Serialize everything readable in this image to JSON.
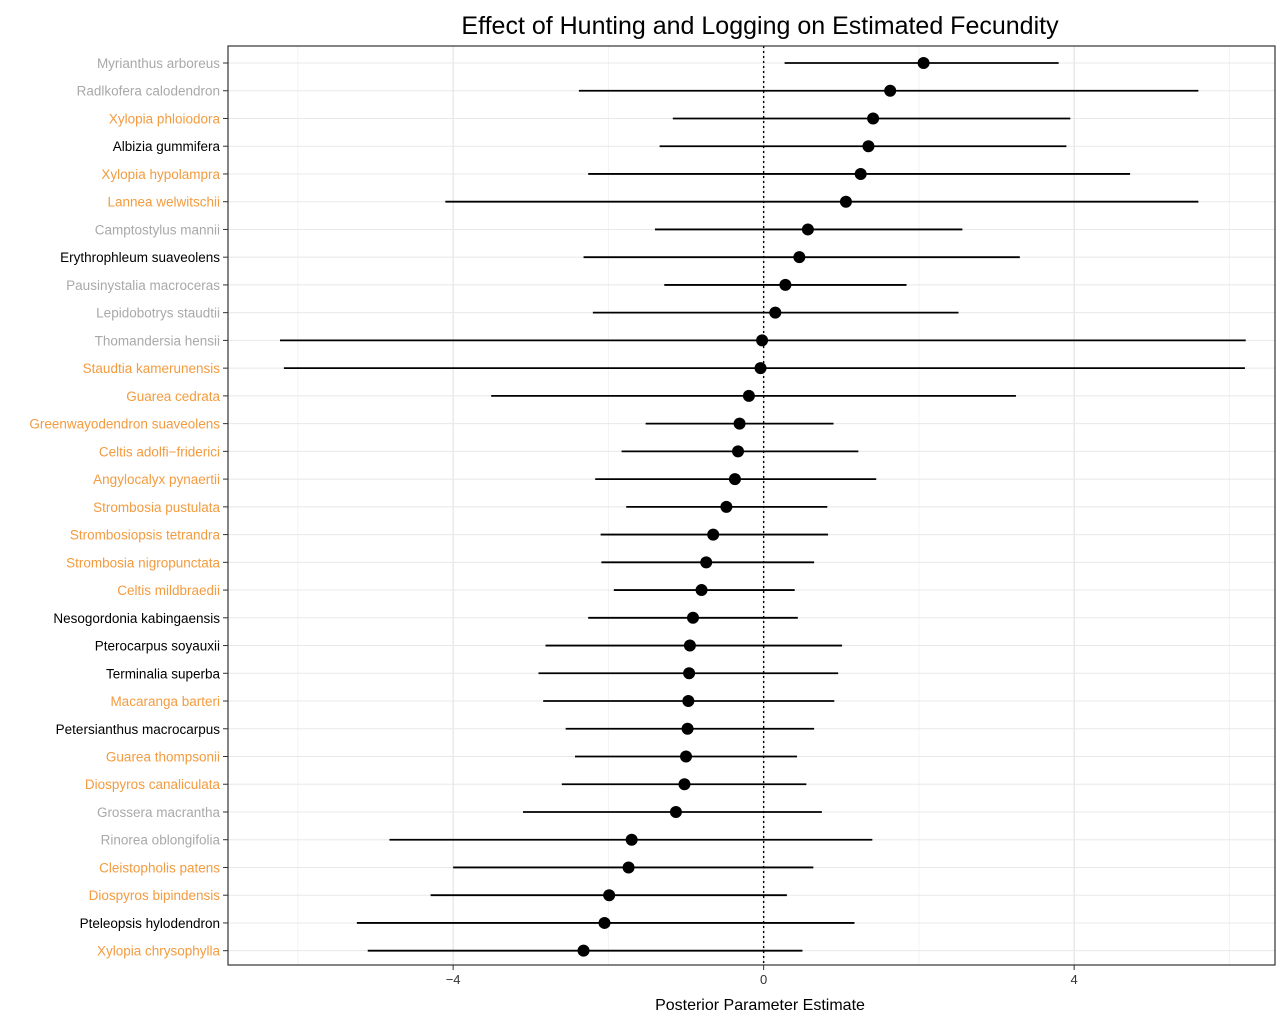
{
  "chart_data": {
    "type": "forest",
    "title": "Effect of Hunting and Logging on Estimated Fecundity",
    "xlabel": "Posterior Parameter Estimate",
    "ylabel": "",
    "xlim": [
      -6.9,
      6.6
    ],
    "x_ticks": [
      -4,
      0,
      4
    ],
    "x_tick_labels": [
      "−4",
      "0",
      "4"
    ],
    "reference_line": 0,
    "grid": true,
    "colors": {
      "black": "#000000",
      "gray": "#a9a9a9",
      "orange": "#f39b3f",
      "point": "#000000",
      "line": "#000000"
    },
    "species": [
      {
        "name": "Myrianthus arboreus",
        "color": "gray",
        "estimate": 2.06,
        "lower": 0.27,
        "upper": 3.8
      },
      {
        "name": "Radlkofera calodendron",
        "color": "gray",
        "estimate": 1.63,
        "lower": -2.38,
        "upper": 5.6
      },
      {
        "name": "Xylopia phloiodora",
        "color": "orange",
        "estimate": 1.41,
        "lower": -1.17,
        "upper": 3.95
      },
      {
        "name": "Albizia gummifera",
        "color": "black",
        "estimate": 1.35,
        "lower": -1.34,
        "upper": 3.9
      },
      {
        "name": "Xylopia hypolampra",
        "color": "orange",
        "estimate": 1.25,
        "lower": -2.26,
        "upper": 4.72
      },
      {
        "name": "Lannea welwitschii",
        "color": "orange",
        "estimate": 1.06,
        "lower": -4.1,
        "upper": 5.6
      },
      {
        "name": "Camptostylus mannii",
        "color": "gray",
        "estimate": 0.57,
        "lower": -1.4,
        "upper": 2.56
      },
      {
        "name": "Erythrophleum suaveolens",
        "color": "black",
        "estimate": 0.46,
        "lower": -2.32,
        "upper": 3.3
      },
      {
        "name": "Pausinystalia macroceras",
        "color": "gray",
        "estimate": 0.28,
        "lower": -1.28,
        "upper": 1.84
      },
      {
        "name": "Lepidobotrys staudtii",
        "color": "gray",
        "estimate": 0.15,
        "lower": -2.2,
        "upper": 2.51
      },
      {
        "name": "Thomandersia hensii",
        "color": "gray",
        "estimate": -0.02,
        "lower": -6.23,
        "upper": 6.21
      },
      {
        "name": "Staudtia kamerunensis",
        "color": "orange",
        "estimate": -0.04,
        "lower": -6.18,
        "upper": 6.2
      },
      {
        "name": "Guarea cedrata",
        "color": "orange",
        "estimate": -0.19,
        "lower": -3.51,
        "upper": 3.25
      },
      {
        "name": "Greenwayodendron suaveolens",
        "color": "orange",
        "estimate": -0.31,
        "lower": -1.52,
        "upper": 0.9
      },
      {
        "name": "Celtis adolfi−friderici",
        "color": "orange",
        "estimate": -0.33,
        "lower": -1.83,
        "upper": 1.22
      },
      {
        "name": "Angylocalyx pynaertii",
        "color": "orange",
        "estimate": -0.37,
        "lower": -2.17,
        "upper": 1.45
      },
      {
        "name": "Strombosia pustulata",
        "color": "orange",
        "estimate": -0.48,
        "lower": -1.77,
        "upper": 0.82
      },
      {
        "name": "Strombosiopsis tetrandra",
        "color": "orange",
        "estimate": -0.65,
        "lower": -2.1,
        "upper": 0.83
      },
      {
        "name": "Strombosia nigropunctata",
        "color": "orange",
        "estimate": -0.74,
        "lower": -2.09,
        "upper": 0.65
      },
      {
        "name": "Celtis mildbraedii",
        "color": "orange",
        "estimate": -0.8,
        "lower": -1.93,
        "upper": 0.4
      },
      {
        "name": "Nesogordonia kabingaensis",
        "color": "black",
        "estimate": -0.91,
        "lower": -2.26,
        "upper": 0.44
      },
      {
        "name": "Pterocarpus soyauxii",
        "color": "black",
        "estimate": -0.95,
        "lower": -2.81,
        "upper": 1.01
      },
      {
        "name": "Terminalia superba",
        "color": "black",
        "estimate": -0.96,
        "lower": -2.9,
        "upper": 0.96
      },
      {
        "name": "Macaranga barteri",
        "color": "orange",
        "estimate": -0.97,
        "lower": -2.84,
        "upper": 0.91
      },
      {
        "name": "Petersianthus macrocarpus",
        "color": "black",
        "estimate": -0.98,
        "lower": -2.55,
        "upper": 0.65
      },
      {
        "name": "Guarea thompsonii",
        "color": "orange",
        "estimate": -1.0,
        "lower": -2.43,
        "upper": 0.43
      },
      {
        "name": "Diospyros canaliculata",
        "color": "orange",
        "estimate": -1.02,
        "lower": -2.6,
        "upper": 0.55
      },
      {
        "name": "Grossera macrantha",
        "color": "gray",
        "estimate": -1.13,
        "lower": -3.1,
        "upper": 0.75
      },
      {
        "name": "Rinorea oblongifolia",
        "color": "gray",
        "estimate": -1.7,
        "lower": -4.82,
        "upper": 1.4
      },
      {
        "name": "Cleistopholis patens",
        "color": "orange",
        "estimate": -1.74,
        "lower": -4.0,
        "upper": 0.64
      },
      {
        "name": "Diospyros bipindensis",
        "color": "orange",
        "estimate": -1.99,
        "lower": -4.29,
        "upper": 0.3
      },
      {
        "name": "Pteleopsis hylodendron",
        "color": "black",
        "estimate": -2.05,
        "lower": -5.24,
        "upper": 1.17
      },
      {
        "name": "Xylopia chrysophylla",
        "color": "orange",
        "estimate": -2.32,
        "lower": -5.1,
        "upper": 0.5
      }
    ]
  }
}
